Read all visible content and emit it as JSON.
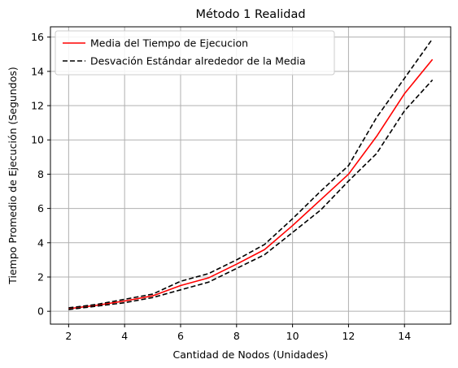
{
  "chart_data": {
    "type": "line",
    "title": "Método 1 Realidad",
    "xlabel": "Cantidad de Nodos (Unidades)",
    "ylabel": "Tiempo Promedio de Ejecución (Segundos)",
    "xlim": [
      1.35,
      15.65
    ],
    "ylim": [
      -0.75,
      16.6
    ],
    "xticks": [
      2,
      4,
      6,
      8,
      10,
      12,
      14
    ],
    "yticks": [
      0,
      2,
      4,
      6,
      8,
      10,
      12,
      14,
      16
    ],
    "grid": true,
    "legend_position": "top-left",
    "x": [
      2,
      3,
      4,
      5,
      6,
      7,
      8,
      9,
      10,
      11,
      12,
      13,
      14,
      15
    ],
    "series": [
      {
        "name": "Media del Tiempo de Ejecucion",
        "color": "#ff0000",
        "style": "solid",
        "values": [
          0.15,
          0.35,
          0.6,
          0.9,
          1.5,
          1.95,
          2.75,
          3.6,
          5.0,
          6.5,
          8.0,
          10.2,
          12.7,
          14.7
        ]
      },
      {
        "name": "Desvación Estándar alrededor de la Media",
        "color": "#000000",
        "style": "dashed",
        "values": [
          0.2,
          0.4,
          0.7,
          1.0,
          1.75,
          2.2,
          3.0,
          3.9,
          5.4,
          7.0,
          8.5,
          11.3,
          13.6,
          15.9
        ]
      },
      {
        "name": "",
        "color": "#000000",
        "style": "dashed",
        "values": [
          0.1,
          0.3,
          0.5,
          0.8,
          1.25,
          1.7,
          2.5,
          3.3,
          4.6,
          5.9,
          7.6,
          9.2,
          11.7,
          13.5
        ]
      }
    ]
  }
}
